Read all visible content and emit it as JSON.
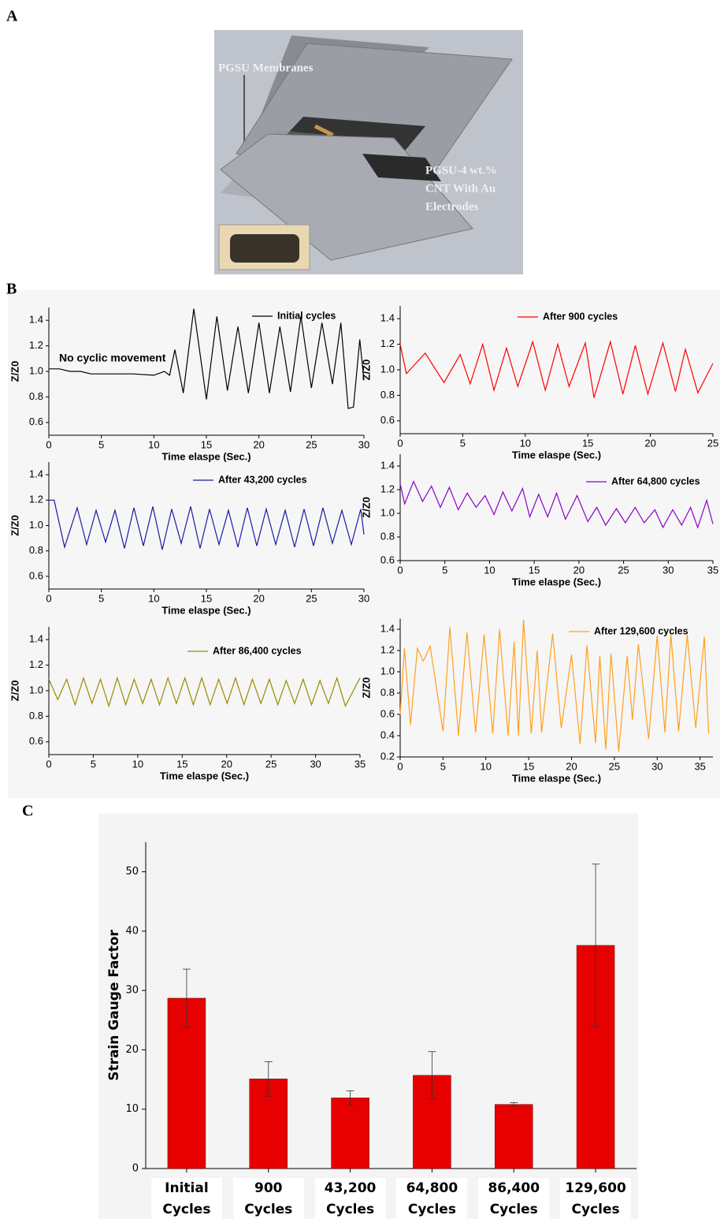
{
  "panel_labels": [
    "A",
    "B",
    "C"
  ],
  "diagram": {
    "labels": [
      "PGSU Membranes",
      "PGSU-4 wt.%",
      "CNT With Au",
      "Electrodes"
    ]
  },
  "chart_data": [
    {
      "type": "line",
      "x_label": "Time elaspe (Sec.)",
      "y_label": "Z/Z0",
      "annotation": "No cyclic movement",
      "x": [
        0,
        1,
        2,
        3,
        4,
        6,
        8,
        10,
        11,
        11.5,
        12,
        12.8,
        13.8,
        15,
        16,
        17,
        18,
        19,
        20,
        21,
        22,
        23,
        24,
        25,
        26,
        27,
        27.8,
        28.5,
        29,
        29.6,
        30
      ],
      "series": [
        {
          "name": "Initial cycles",
          "color": "#000000",
          "values": [
            1.02,
            1.02,
            1,
            1,
            0.98,
            0.98,
            0.98,
            0.97,
            1,
            0.97,
            1.17,
            0.83,
            1.49,
            0.78,
            1.43,
            0.85,
            1.35,
            0.83,
            1.38,
            0.83,
            1.35,
            0.84,
            1.43,
            0.87,
            1.38,
            0.9,
            1.38,
            0.71,
            0.72,
            1.25,
            0.93
          ]
        }
      ],
      "xlim": [
        0,
        30
      ],
      "xticks": [
        0,
        5,
        10,
        15,
        20,
        25,
        30
      ],
      "ylim": [
        0.5,
        1.5
      ],
      "yticks": [
        0.6,
        0.8,
        {
          "value": 1,
          "label": "1.0"
        },
        1.2,
        1.4
      ]
    },
    {
      "type": "line",
      "x_label": "Time elaspe (Sec.)",
      "y_label": "Z/Z0",
      "x": [
        0,
        0.5,
        2,
        3.5,
        4.8,
        5.6,
        6.6,
        7.5,
        8.5,
        9.4,
        10.6,
        11.6,
        12.6,
        13.5,
        14.8,
        15.5,
        16.8,
        17.8,
        18.8,
        19.8,
        21,
        22,
        22.8,
        23.8,
        25
      ],
      "series": [
        {
          "name": "After 900 cycles",
          "color": "#ff0000",
          "values": [
            1.2,
            0.97,
            1.13,
            0.9,
            1.12,
            0.89,
            1.2,
            0.84,
            1.17,
            0.87,
            1.22,
            0.84,
            1.2,
            0.87,
            1.21,
            0.78,
            1.22,
            0.81,
            1.19,
            0.81,
            1.21,
            0.83,
            1.16,
            0.82,
            1.05
          ]
        }
      ],
      "xlim": [
        0,
        25
      ],
      "xticks": [
        0,
        5,
        10,
        15,
        20,
        25
      ],
      "ylim": [
        0.5,
        1.5
      ],
      "yticks": [
        0.6,
        0.8,
        {
          "value": 1,
          "label": "1.0"
        },
        1.2,
        1.4
      ]
    },
    {
      "type": "line",
      "x_label": "Time elaspe (Sec.)",
      "y_label": "Z/Z0",
      "x": [
        0,
        0.5,
        1.5,
        2.7,
        3.6,
        4.5,
        5.4,
        6.3,
        7.2,
        8.1,
        9,
        9.9,
        10.8,
        11.7,
        12.6,
        13.5,
        14.4,
        15.3,
        16.2,
        17.1,
        18,
        18.9,
        19.8,
        20.7,
        21.6,
        22.5,
        23.4,
        24.3,
        25.2,
        26.1,
        27,
        27.9,
        28.8,
        29.7,
        30
      ],
      "series": [
        {
          "name": "After 43,200 cycles",
          "color": "#1a1aa8",
          "values": [
            1.2,
            1.2,
            0.83,
            1.14,
            0.85,
            1.12,
            0.87,
            1.12,
            0.82,
            1.14,
            0.84,
            1.15,
            0.81,
            1.13,
            0.86,
            1.15,
            0.82,
            1.13,
            0.85,
            1.12,
            0.83,
            1.14,
            0.84,
            1.13,
            0.85,
            1.12,
            0.83,
            1.13,
            0.84,
            1.14,
            0.86,
            1.12,
            0.85,
            1.13,
            0.93
          ]
        }
      ],
      "xlim": [
        0,
        30
      ],
      "xticks": [
        0,
        5,
        10,
        15,
        20,
        25,
        30
      ],
      "ylim": [
        0.5,
        1.5
      ],
      "yticks": [
        0.6,
        0.8,
        {
          "value": 1,
          "label": "1.0"
        },
        1.2,
        1.4
      ]
    },
    {
      "type": "line",
      "x_label": "Time elaspe (Sec.)",
      "y_label": "Z/Z0",
      "x": [
        0,
        0.5,
        1.5,
        2.5,
        3.5,
        4.5,
        5.5,
        6.5,
        7.5,
        8.5,
        9.5,
        10.5,
        11.5,
        12.5,
        13.7,
        14.5,
        15.5,
        16.5,
        17.5,
        18.5,
        19.8,
        21,
        22,
        23,
        24.2,
        25.2,
        26.3,
        27.3,
        28.5,
        29.4,
        30.5,
        31.5,
        32.5,
        33.3,
        34.3,
        35
      ],
      "series": [
        {
          "name": "After 64,800 cycles",
          "color": "#8a00c8",
          "values": [
            1.25,
            1.08,
            1.27,
            1.1,
            1.23,
            1.05,
            1.22,
            1.03,
            1.17,
            1.05,
            1.15,
            0.99,
            1.18,
            1.02,
            1.21,
            0.97,
            1.16,
            0.97,
            1.17,
            0.95,
            1.15,
            0.93,
            1.05,
            0.9,
            1.04,
            0.92,
            1.05,
            0.92,
            1.03,
            0.88,
            1.03,
            0.9,
            1.05,
            0.88,
            1.11,
            0.91
          ]
        }
      ],
      "xlim": [
        0,
        35
      ],
      "xticks": [
        0,
        5,
        10,
        15,
        20,
        25,
        30,
        35
      ],
      "ylim": [
        0.6,
        1.5
      ],
      "yticks": [
        0.6,
        0.8,
        {
          "value": 1,
          "label": "1.0"
        },
        1.2,
        1.4
      ]
    },
    {
      "type": "line",
      "x_label": "Time elaspe (Sec.)",
      "y_label": "Z/Z0",
      "x": [
        0,
        1,
        2,
        2.95,
        3.9,
        4.85,
        5.8,
        6.75,
        7.7,
        8.65,
        9.6,
        10.55,
        11.5,
        12.45,
        13.4,
        14.35,
        15.3,
        16.25,
        17.2,
        18.15,
        19.1,
        20.05,
        21,
        21.95,
        22.9,
        23.85,
        24.8,
        25.75,
        26.7,
        27.65,
        28.6,
        29.55,
        30.5,
        31.45,
        32.4,
        33.35,
        35
      ],
      "series": [
        {
          "name": "After 86,400 cycles",
          "color": "#9a8a00",
          "values": [
            1.09,
            0.93,
            1.09,
            0.89,
            1.1,
            0.9,
            1.09,
            0.88,
            1.1,
            0.89,
            1.09,
            0.9,
            1.09,
            0.89,
            1.1,
            0.9,
            1.1,
            0.89,
            1.1,
            0.89,
            1.09,
            0.9,
            1.1,
            0.89,
            1.09,
            0.9,
            1.09,
            0.89,
            1.08,
            0.9,
            1.09,
            0.89,
            1.08,
            0.9,
            1.1,
            0.88,
            1.1
          ]
        }
      ],
      "xlim": [
        0,
        35
      ],
      "xticks": [
        0,
        5,
        10,
        15,
        20,
        25,
        30,
        35
      ],
      "ylim": [
        0.5,
        1.5
      ],
      "yticks": [
        0.6,
        0.8,
        {
          "value": 1,
          "label": "1.0"
        },
        1.2,
        1.4
      ]
    },
    {
      "type": "line",
      "x_label": "Time elaspe (Sec.)",
      "y_label": "Z/Z0",
      "x": [
        0,
        0.5,
        1.2,
        2,
        2.7,
        3.5,
        5,
        5.8,
        6.8,
        7.8,
        8.8,
        9.8,
        10.8,
        11.6,
        12.6,
        13.3,
        13.8,
        14.4,
        15.3,
        16,
        16.5,
        17.8,
        18.8,
        20,
        21,
        21.8,
        22.8,
        23.3,
        24,
        24.6,
        25.5,
        26.5,
        27.1,
        27.8,
        29,
        30,
        30.9,
        31.6,
        32.5,
        33.5,
        34.5,
        35.5,
        36
      ],
      "series": [
        {
          "name": "After 129,600 cycles",
          "color": "#ffa020",
          "values": [
            0.6,
            1.22,
            0.5,
            1.22,
            1.1,
            1.24,
            0.44,
            1.42,
            0.4,
            1.37,
            0.43,
            1.35,
            0.42,
            1.4,
            0.4,
            1.28,
            0.4,
            1.49,
            0.42,
            1.2,
            0.43,
            1.36,
            0.47,
            1.16,
            0.32,
            1.25,
            0.33,
            1.15,
            0.27,
            1.17,
            0.25,
            1.15,
            0.55,
            1.26,
            0.37,
            1.34,
            0.43,
            1.35,
            0.44,
            1.35,
            0.47,
            1.33,
            0.42
          ]
        }
      ],
      "xlim": [
        0,
        36.5
      ],
      "xticks": [
        0,
        5,
        10,
        15,
        20,
        25,
        30,
        35
      ],
      "ylim": [
        0.2,
        1.5
      ],
      "yticks": [
        0.2,
        0.4,
        0.6,
        0.8,
        {
          "value": 1,
          "label": "1.0"
        },
        1.2,
        1.4
      ]
    },
    {
      "type": "bar",
      "y_label": "Strain Gauge Factor",
      "categories": [
        "Initial Cycles",
        "900 Cycles",
        "43,200 Cycles",
        "64,800 Cycles",
        "86,400 Cycles",
        "129,600 Cycles"
      ],
      "values": [
        28.7,
        15.1,
        11.9,
        15.7,
        10.8,
        37.6
      ],
      "errors": [
        4.9,
        2.9,
        1.2,
        4.0,
        0.3,
        13.7
      ],
      "color": "#e60000",
      "ylim": [
        0,
        55
      ],
      "yticks": [
        0,
        10,
        20,
        30,
        40,
        50
      ]
    }
  ]
}
